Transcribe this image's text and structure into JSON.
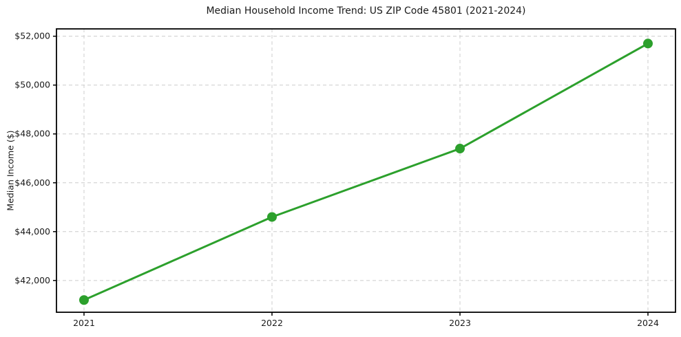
{
  "figure": {
    "background": "#ffffff",
    "text_color": "#1a1a1a",
    "axis_color": "#000000"
  },
  "chart_data": {
    "type": "line",
    "title": "Median Household Income Trend: US ZIP Code 45801 (2021-2024)",
    "xlabel": "",
    "ylabel": "Median Income ($)",
    "categories": [
      "2021",
      "2022",
      "2023",
      "2024"
    ],
    "series": [
      {
        "values": [
          41200,
          44600,
          47400,
          51700
        ],
        "color": "#2ca02c",
        "marker": "circle",
        "line_width": 3,
        "marker_radius": 7
      }
    ],
    "yticks": {
      "values": [
        42000,
        44000,
        46000,
        48000,
        50000,
        52000
      ],
      "labels": [
        "$42,000",
        "$44,000",
        "$46,000",
        "$48,000",
        "$50,000",
        "$52,000"
      ]
    },
    "ylim": [
      40700,
      52300
    ],
    "grid": {
      "visible": true,
      "style": "dashed",
      "color": "#cccccc"
    },
    "legend": {
      "visible": false
    }
  }
}
